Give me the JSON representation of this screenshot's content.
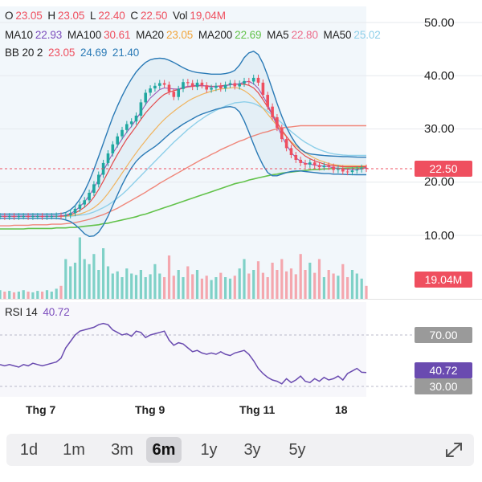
{
  "legend": {
    "row1": {
      "o_label": "O",
      "o": "23.05",
      "h_label": "H",
      "h": "23.05",
      "l_label": "L",
      "l": "22.40",
      "c_label": "C",
      "c": "22.50",
      "vol_label": "Vol",
      "vol": "19,04M"
    },
    "row2": {
      "ma10_label": "MA10",
      "ma10": "22.93",
      "ma100_label": "MA100",
      "ma100": "30.61",
      "ma20_label": "MA20",
      "ma20": "23.05",
      "ma200_label": "MA200",
      "ma200": "22.69",
      "ma5_label": "MA5",
      "ma5": "22.80",
      "ma50_label": "MA50",
      "ma50": "25.02"
    },
    "row3": {
      "bb_label": "BB 20 2",
      "bb_mid": "23.05",
      "bb_up": "24.69",
      "bb_low": "21.40"
    },
    "rsi": {
      "label": "RSI 14",
      "value": "40.72"
    }
  },
  "y_axis_labels": [
    "50.00",
    "40.00",
    "30.00",
    "20.00",
    "10.00"
  ],
  "tags": {
    "price": "22.50",
    "volume": "19.04M",
    "rsi_high": "70.00",
    "rsi_value": "40.72",
    "rsi_low": "30.00"
  },
  "x_axis_labels": [
    "Thg 7",
    "Thg 9",
    "Thg 11",
    "18"
  ],
  "ranges": [
    {
      "label": "1d"
    },
    {
      "label": "1m"
    },
    {
      "label": "3m"
    },
    {
      "label": "6m"
    },
    {
      "label": "1y"
    },
    {
      "label": "3y"
    },
    {
      "label": "5y"
    }
  ],
  "active_range": "6m",
  "colors": {
    "up": "#1fa7a0",
    "down": "#ef4f5f",
    "ma10": "#ec6a89",
    "ma100": "#ef6a5a",
    "ma20": "#f2a53a",
    "ma200": "#62c24a",
    "ma5": "#ec6a89",
    "ma50": "#8ecfe9",
    "bb": "#2a7ab6",
    "rsi": "#6a4bb0"
  },
  "chart_data": {
    "type": "line",
    "title": "",
    "y_axis": {
      "ticks": [
        50,
        40,
        30,
        20,
        10
      ],
      "range": [
        0,
        52
      ]
    },
    "x_axis": {
      "ticks": [
        "Thg 7",
        "Thg 9",
        "Thg 11",
        "18"
      ]
    },
    "price_close": [
      13.6,
      13.5,
      13.6,
      13.5,
      13.6,
      13.6,
      13.5,
      13.6,
      13.6,
      13.5,
      13.6,
      13.6,
      13.7,
      13.6,
      13.8,
      14.2,
      15.0,
      15.8,
      16.6,
      18.0,
      19.6,
      21.4,
      23.6,
      25.4,
      27.1,
      28.6,
      29.8,
      30.9,
      31.4,
      32.5,
      35.0,
      36.8,
      37.6,
      38.1,
      38.6,
      38.3,
      37.0,
      36.0,
      37.5,
      38.8,
      38.6,
      37.9,
      38.7,
      38.2,
      37.4,
      37.7,
      38.1,
      37.6,
      38.3,
      38.6,
      38.0,
      38.5,
      39.0,
      38.9,
      39.6,
      38.7,
      36.4,
      34.2,
      32.2,
      30.2,
      28.1,
      26.4,
      25.1,
      24.2,
      23.6,
      23.3,
      23.7,
      23.2,
      22.8,
      23.1,
      22.9,
      22.3,
      22.6,
      22.0,
      21.9,
      22.2,
      22.4,
      22.7,
      22.5
    ],
    "ma5": [
      13.6,
      13.6,
      13.6,
      13.6,
      13.6,
      13.6,
      13.6,
      13.6,
      13.6,
      13.6,
      13.6,
      13.6,
      13.6,
      13.7,
      13.8,
      14.1,
      14.6,
      15.4,
      16.3,
      17.5,
      18.9,
      20.5,
      22.1,
      23.8,
      25.4,
      26.8,
      28.1,
      29.4,
      30.5,
      31.8,
      33.2,
      34.6,
      35.8,
      36.6,
      37.4,
      37.7,
      37.6,
      37.5,
      37.5,
      37.8,
      38.0,
      38.1,
      38.2,
      38.2,
      38.0,
      37.9,
      38.0,
      38.0,
      38.1,
      38.3,
      38.4,
      38.5,
      38.8,
      38.9,
      38.5,
      37.6,
      36.2,
      34.6,
      32.6,
      30.6,
      28.7,
      27.0,
      25.6,
      24.6,
      23.9,
      23.5,
      23.4,
      23.2,
      23.1,
      23.0,
      22.9,
      22.7,
      22.6,
      22.5,
      22.4,
      22.4,
      22.4,
      22.5,
      22.8
    ],
    "ma10": [
      13.6,
      13.6,
      13.6,
      13.6,
      13.6,
      13.6,
      13.6,
      13.6,
      13.6,
      13.6,
      13.6,
      13.6,
      13.6,
      13.6,
      13.7,
      13.9,
      14.2,
      14.7,
      15.3,
      16.1,
      17.2,
      18.6,
      20.2,
      21.9,
      23.6,
      25.2,
      26.7,
      28.1,
      29.3,
      30.5,
      31.8,
      33.0,
      34.0,
      34.9,
      35.8,
      36.5,
      36.9,
      37.2,
      37.4,
      37.7,
      37.9,
      38.0,
      38.1,
      38.1,
      38.1,
      38.0,
      38.0,
      38.1,
      38.2,
      38.3,
      38.4,
      38.4,
      38.4,
      38.2,
      37.7,
      36.8,
      35.5,
      34.1,
      32.7,
      31.2,
      29.8,
      28.6,
      27.4,
      26.4,
      25.6,
      24.9,
      24.4,
      24.0,
      23.7,
      23.4,
      23.2,
      23.1,
      23.0,
      22.9,
      22.9,
      22.9,
      22.9,
      22.9,
      22.93
    ],
    "ma20": [
      13.6,
      13.6,
      13.6,
      13.6,
      13.6,
      13.6,
      13.6,
      13.6,
      13.6,
      13.6,
      13.6,
      13.6,
      13.6,
      13.6,
      13.6,
      13.7,
      13.8,
      14.0,
      14.3,
      14.7,
      15.2,
      15.9,
      16.8,
      17.9,
      19.1,
      20.4,
      21.7,
      23.0,
      24.3,
      25.5,
      26.7,
      27.8,
      28.9,
      29.9,
      30.9,
      31.8,
      32.6,
      33.3,
      34.0,
      34.6,
      35.2,
      35.7,
      36.1,
      36.5,
      36.8,
      37.1,
      37.3,
      37.5,
      37.6,
      37.7,
      37.8,
      37.6,
      37.2,
      36.6,
      35.8,
      34.9,
      33.9,
      32.8,
      31.7,
      30.6,
      29.5,
      28.5,
      27.6,
      26.8,
      26.1,
      25.5,
      25.0,
      24.5,
      24.1,
      23.8,
      23.5,
      23.3,
      23.2,
      23.1,
      23.1,
      23.1,
      23.05,
      23.05,
      23.05
    ],
    "ma50": [
      13.6,
      13.6,
      13.6,
      13.6,
      13.6,
      13.6,
      13.6,
      13.6,
      13.6,
      13.6,
      13.6,
      13.6,
      13.6,
      13.6,
      13.6,
      13.6,
      13.7,
      13.8,
      13.9,
      14.1,
      14.4,
      14.8,
      15.2,
      15.7,
      16.3,
      17.0,
      17.7,
      18.5,
      19.4,
      20.3,
      21.2,
      22.1,
      23.0,
      23.9,
      24.8,
      25.7,
      26.6,
      27.5,
      28.3,
      29.1,
      29.9,
      30.6,
      31.3,
      31.9,
      32.5,
      33.0,
      33.5,
      33.9,
      34.3,
      34.6,
      34.9,
      35.0,
      35.1,
      35.0,
      34.8,
      34.4,
      33.9,
      33.3,
      32.6,
      31.9,
      31.1,
      30.3,
      29.5,
      28.8,
      28.1,
      27.5,
      27.0,
      26.5,
      26.1,
      25.8,
      25.5,
      25.3,
      25.2,
      25.1,
      25.05,
      25.03,
      25.02,
      25.02,
      25.02
    ],
    "ma100": [
      11.8,
      11.8,
      11.8,
      11.9,
      11.9,
      11.9,
      11.9,
      12.0,
      12.0,
      12.0,
      12.0,
      12.1,
      12.1,
      12.1,
      12.2,
      12.3,
      12.4,
      12.6,
      12.8,
      13.0,
      13.3,
      13.6,
      13.9,
      14.3,
      14.7,
      15.1,
      15.6,
      16.1,
      16.6,
      17.1,
      17.6,
      18.1,
      18.7,
      19.2,
      19.8,
      20.3,
      20.8,
      21.3,
      21.8,
      22.3,
      22.8,
      23.3,
      23.8,
      24.3,
      24.7,
      25.2,
      25.6,
      26.1,
      26.5,
      26.9,
      27.3,
      27.7,
      28.0,
      28.4,
      28.7,
      29.0,
      29.3,
      29.5,
      29.8,
      30.0,
      30.2,
      30.3,
      30.4,
      30.5,
      30.6,
      30.6,
      30.6,
      30.6,
      30.6,
      30.6,
      30.61,
      30.61,
      30.61,
      30.61,
      30.61,
      30.61,
      30.61,
      30.61,
      30.61
    ],
    "ma200": [
      11.2,
      11.2,
      11.2,
      11.2,
      11.2,
      11.2,
      11.3,
      11.3,
      11.3,
      11.3,
      11.3,
      11.3,
      11.4,
      11.4,
      11.4,
      11.5,
      11.5,
      11.6,
      11.7,
      11.8,
      11.9,
      12.0,
      12.2,
      12.3,
      12.5,
      12.7,
      12.9,
      13.1,
      13.3,
      13.5,
      13.8,
      14.0,
      14.3,
      14.6,
      14.9,
      15.2,
      15.5,
      15.8,
      16.1,
      16.4,
      16.7,
      17.0,
      17.3,
      17.6,
      17.9,
      18.2,
      18.5,
      18.8,
      19.1,
      19.4,
      19.7,
      19.9,
      20.1,
      20.4,
      20.6,
      20.8,
      21.0,
      21.2,
      21.4,
      21.5,
      21.7,
      21.8,
      21.9,
      22.0,
      22.1,
      22.2,
      22.3,
      22.4,
      22.4,
      22.5,
      22.5,
      22.6,
      22.6,
      22.6,
      22.65,
      22.67,
      22.68,
      22.69,
      22.69
    ],
    "bb_upper": [
      14.0,
      14.0,
      14.0,
      14.0,
      14.0,
      14.0,
      14.0,
      14.0,
      14.0,
      14.0,
      14.0,
      14.0,
      14.0,
      14.1,
      14.3,
      14.8,
      15.6,
      16.8,
      18.3,
      20.2,
      22.4,
      24.8,
      27.3,
      29.8,
      32.2,
      34.3,
      36.2,
      37.9,
      39.4,
      40.7,
      41.7,
      42.5,
      43.0,
      43.2,
      43.3,
      43.2,
      42.9,
      42.5,
      42.0,
      41.5,
      41.1,
      40.8,
      40.6,
      40.5,
      40.4,
      40.3,
      40.3,
      40.3,
      40.4,
      40.6,
      41.0,
      42.0,
      43.4,
      44.3,
      44.6,
      44.0,
      42.3,
      40.0,
      37.4,
      34.8,
      32.4,
      30.3,
      28.6,
      27.2,
      26.2,
      25.6,
      25.3,
      25.2,
      25.1,
      25.0,
      24.95,
      24.9,
      24.85,
      24.8,
      24.8,
      24.75,
      24.7,
      24.69,
      24.69
    ],
    "bb_lower": [
      13.2,
      13.2,
      13.2,
      13.2,
      13.2,
      13.2,
      13.2,
      13.2,
      13.2,
      13.2,
      13.2,
      13.2,
      13.2,
      13.1,
      12.9,
      12.6,
      12.0,
      11.2,
      10.3,
      9.8,
      9.9,
      10.6,
      11.9,
      13.6,
      15.6,
      17.6,
      19.5,
      21.2,
      22.7,
      23.9,
      24.8,
      25.5,
      26.1,
      26.7,
      27.4,
      28.2,
      29.0,
      29.7,
      30.3,
      30.9,
      31.4,
      31.9,
      32.4,
      32.8,
      33.1,
      33.4,
      33.7,
      33.9,
      34.1,
      34.2,
      34.0,
      33.2,
      31.5,
      29.4,
      27.1,
      25.0,
      23.2,
      21.8,
      21.2,
      21.2,
      21.5,
      21.8,
      22.0,
      22.1,
      22.1,
      22.0,
      21.9,
      21.8,
      21.7,
      21.6,
      21.6,
      21.5,
      21.5,
      21.45,
      21.42,
      21.41,
      21.4,
      21.4,
      21.4
    ],
    "volume_scale_max": 1.0,
    "volume": [
      0.12,
      0.1,
      0.11,
      0.09,
      0.1,
      0.12,
      0.1,
      0.09,
      0.11,
      0.1,
      0.12,
      0.1,
      0.14,
      0.18,
      0.55,
      0.45,
      0.5,
      0.85,
      0.55,
      0.48,
      0.62,
      0.4,
      0.7,
      0.45,
      0.35,
      0.38,
      0.3,
      0.42,
      0.35,
      0.33,
      0.4,
      0.3,
      0.34,
      0.48,
      0.35,
      0.3,
      0.6,
      0.32,
      0.4,
      0.3,
      0.45,
      0.34,
      0.4,
      0.28,
      0.32,
      0.26,
      0.3,
      0.36,
      0.3,
      0.28,
      0.32,
      0.42,
      0.55,
      0.35,
      0.4,
      0.52,
      0.36,
      0.3,
      0.5,
      0.4,
      0.55,
      0.38,
      0.42,
      0.34,
      0.62,
      0.4,
      0.5,
      0.36,
      0.55,
      0.3,
      0.4,
      0.35,
      0.32,
      0.48,
      0.3,
      0.4,
      0.35,
      0.28,
      0.18
    ],
    "rsi": [
      47,
      46,
      47,
      46,
      45,
      47,
      46,
      48,
      47,
      46,
      47,
      48,
      49,
      52,
      60,
      65,
      70,
      73,
      74,
      75,
      76,
      78,
      79,
      78,
      74,
      72,
      70,
      71,
      69,
      73,
      72,
      68,
      70,
      71,
      72,
      73,
      66,
      62,
      64,
      63,
      60,
      57,
      58,
      56,
      55,
      56,
      55,
      57,
      55,
      54,
      56,
      57,
      58,
      55,
      50,
      44,
      40,
      37,
      35,
      34,
      32,
      36,
      33,
      35,
      38,
      34,
      33,
      36,
      34,
      37,
      35,
      36,
      38,
      35,
      40,
      42,
      44,
      41,
      40.72
    ]
  }
}
